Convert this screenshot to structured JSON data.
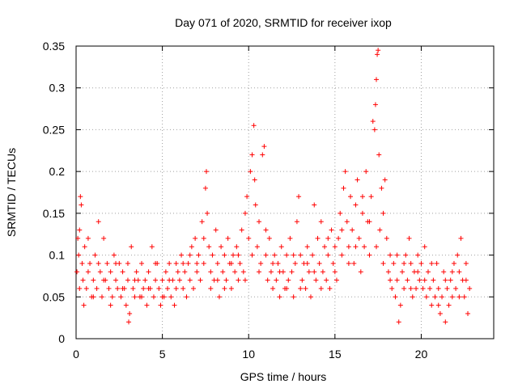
{
  "chart_data": {
    "type": "scatter",
    "title": "Day 071 of 2020, SRMTID for receiver ixop",
    "xlabel": "GPS time / hours",
    "ylabel": "SRMTID / TECUs",
    "xlim": [
      0,
      24.2
    ],
    "ylim": [
      0,
      0.35
    ],
    "xticks": [
      0,
      5,
      10,
      15,
      20
    ],
    "xtick_labels": [
      "0",
      "5",
      "10",
      "15",
      "20"
    ],
    "yticks": [
      0,
      0.05,
      0.1,
      0.15,
      0.2,
      0.25,
      0.3,
      0.35
    ],
    "ytick_labels": [
      "0",
      "0.05",
      "0.1",
      "0.15",
      "0.2",
      "0.25",
      "0.3",
      "0.35"
    ],
    "grid": true,
    "marker": "+",
    "marker_color": "#ff0000",
    "series": [
      {
        "name": "SRMTID",
        "points": [
          [
            0.05,
            0.08
          ],
          [
            0.1,
            0.12
          ],
          [
            0.15,
            0.1
          ],
          [
            0.2,
            0.13
          ],
          [
            0.25,
            0.17
          ],
          [
            0.3,
            0.16
          ],
          [
            0.35,
            0.09
          ],
          [
            0.4,
            0.07
          ],
          [
            0.5,
            0.11
          ],
          [
            0.6,
            0.06
          ],
          [
            0.7,
            0.12
          ],
          [
            0.8,
            0.09
          ],
          [
            0.9,
            0.05
          ],
          [
            1.0,
            0.07
          ],
          [
            1.1,
            0.1
          ],
          [
            1.2,
            0.06
          ],
          [
            1.3,
            0.14
          ],
          [
            1.4,
            0.08
          ],
          [
            1.5,
            0.05
          ],
          [
            1.6,
            0.12
          ],
          [
            1.7,
            0.07
          ],
          [
            1.8,
            0.09
          ],
          [
            1.9,
            0.06
          ],
          [
            2.0,
            0.08
          ],
          [
            2.1,
            0.05
          ],
          [
            2.2,
            0.1
          ],
          [
            2.3,
            0.07
          ],
          [
            2.4,
            0.06
          ],
          [
            2.5,
            0.09
          ],
          [
            2.6,
            0.05
          ],
          [
            2.7,
            0.08
          ],
          [
            2.8,
            0.06
          ],
          [
            2.9,
            0.04
          ],
          [
            3.0,
            0.07
          ],
          [
            3.05,
            0.02
          ],
          [
            3.1,
            0.03
          ],
          [
            3.2,
            0.11
          ],
          [
            3.3,
            0.06
          ],
          [
            3.4,
            0.05
          ],
          [
            3.5,
            0.08
          ],
          [
            3.6,
            0.07
          ],
          [
            3.7,
            0.05
          ],
          [
            3.8,
            0.09
          ],
          [
            3.9,
            0.06
          ],
          [
            4.0,
            0.07
          ],
          [
            4.1,
            0.04
          ],
          [
            4.2,
            0.08
          ],
          [
            4.3,
            0.06
          ],
          [
            4.4,
            0.11
          ],
          [
            4.5,
            0.05
          ],
          [
            4.6,
            0.07
          ],
          [
            4.7,
            0.09
          ],
          [
            4.8,
            0.06
          ],
          [
            4.9,
            0.04
          ],
          [
            5.0,
            0.07
          ],
          [
            5.1,
            0.05
          ],
          [
            5.2,
            0.08
          ],
          [
            5.3,
            0.06
          ],
          [
            5.4,
            0.09
          ],
          [
            5.5,
            0.05
          ],
          [
            5.6,
            0.07
          ],
          [
            5.7,
            0.04
          ],
          [
            5.8,
            0.06
          ],
          [
            5.9,
            0.08
          ],
          [
            6.0,
            0.07
          ],
          [
            6.1,
            0.1
          ],
          [
            6.2,
            0.06
          ],
          [
            6.3,
            0.08
          ],
          [
            6.4,
            0.05
          ],
          [
            6.5,
            0.09
          ],
          [
            6.6,
            0.07
          ],
          [
            6.7,
            0.11
          ],
          [
            6.8,
            0.06
          ],
          [
            6.9,
            0.12
          ],
          [
            7.0,
            0.08
          ],
          [
            7.1,
            0.1
          ],
          [
            7.2,
            0.07
          ],
          [
            7.3,
            0.14
          ],
          [
            7.4,
            0.09
          ],
          [
            7.5,
            0.18
          ],
          [
            7.55,
            0.2
          ],
          [
            7.6,
            0.15
          ],
          [
            7.7,
            0.11
          ],
          [
            7.8,
            0.08
          ],
          [
            7.9,
            0.1
          ],
          [
            8.0,
            0.07
          ],
          [
            8.1,
            0.13
          ],
          [
            8.2,
            0.09
          ],
          [
            8.3,
            0.05
          ],
          [
            8.4,
            0.11
          ],
          [
            8.5,
            0.08
          ],
          [
            8.6,
            0.1
          ],
          [
            8.7,
            0.07
          ],
          [
            8.8,
            0.12
          ],
          [
            8.9,
            0.09
          ],
          [
            9.0,
            0.06
          ],
          [
            9.1,
            0.1
          ],
          [
            9.2,
            0.08
          ],
          [
            9.3,
            0.11
          ],
          [
            9.4,
            0.07
          ],
          [
            9.5,
            0.09
          ],
          [
            9.6,
            0.13
          ],
          [
            9.7,
            0.08
          ],
          [
            9.8,
            0.15
          ],
          [
            9.9,
            0.17
          ],
          [
            10.0,
            0.12
          ],
          [
            10.1,
            0.2
          ],
          [
            10.2,
            0.22
          ],
          [
            10.3,
            0.255
          ],
          [
            10.35,
            0.19
          ],
          [
            10.4,
            0.16
          ],
          [
            10.5,
            0.11
          ],
          [
            10.6,
            0.14
          ],
          [
            10.7,
            0.09
          ],
          [
            10.8,
            0.22
          ],
          [
            10.9,
            0.23
          ],
          [
            11.0,
            0.1
          ],
          [
            11.1,
            0.07
          ],
          [
            11.2,
            0.12
          ],
          [
            11.3,
            0.08
          ],
          [
            11.4,
            0.06
          ],
          [
            11.5,
            0.1
          ],
          [
            11.6,
            0.07
          ],
          [
            11.7,
            0.09
          ],
          [
            11.8,
            0.05
          ],
          [
            11.9,
            0.11
          ],
          [
            12.0,
            0.08
          ],
          [
            12.1,
            0.06
          ],
          [
            12.2,
            0.1
          ],
          [
            12.3,
            0.07
          ],
          [
            12.4,
            0.12
          ],
          [
            12.5,
            0.08
          ],
          [
            12.6,
            0.05
          ],
          [
            12.7,
            0.09
          ],
          [
            12.8,
            0.14
          ],
          [
            12.9,
            0.17
          ],
          [
            13.0,
            0.1
          ],
          [
            13.1,
            0.07
          ],
          [
            13.2,
            0.09
          ],
          [
            13.3,
            0.06
          ],
          [
            13.4,
            0.11
          ],
          [
            13.5,
            0.08
          ],
          [
            13.6,
            0.05
          ],
          [
            13.7,
            0.1
          ],
          [
            13.8,
            0.16
          ],
          [
            13.9,
            0.07
          ],
          [
            14.0,
            0.12
          ],
          [
            14.1,
            0.09
          ],
          [
            14.2,
            0.14
          ],
          [
            14.3,
            0.08
          ],
          [
            14.4,
            0.11
          ],
          [
            14.5,
            0.07
          ],
          [
            14.6,
            0.1
          ],
          [
            14.7,
            0.06
          ],
          [
            14.8,
            0.13
          ],
          [
            14.9,
            0.09
          ],
          [
            15.0,
            0.11
          ],
          [
            15.1,
            0.07
          ],
          [
            15.2,
            0.12
          ],
          [
            15.3,
            0.15
          ],
          [
            15.4,
            0.1
          ],
          [
            15.5,
            0.18
          ],
          [
            15.6,
            0.2
          ],
          [
            15.7,
            0.14
          ],
          [
            15.8,
            0.11
          ],
          [
            15.9,
            0.17
          ],
          [
            16.0,
            0.13
          ],
          [
            16.1,
            0.09
          ],
          [
            16.2,
            0.16
          ],
          [
            16.3,
            0.19
          ],
          [
            16.4,
            0.12
          ],
          [
            16.5,
            0.08
          ],
          [
            16.6,
            0.15
          ],
          [
            16.7,
            0.11
          ],
          [
            16.8,
            0.2
          ],
          [
            16.9,
            0.14
          ],
          [
            17.0,
            0.1
          ],
          [
            17.1,
            0.17
          ],
          [
            17.2,
            0.26
          ],
          [
            17.3,
            0.25
          ],
          [
            17.35,
            0.28
          ],
          [
            17.4,
            0.31
          ],
          [
            17.45,
            0.34
          ],
          [
            17.5,
            0.345
          ],
          [
            17.55,
            0.22
          ],
          [
            17.6,
            0.13
          ],
          [
            17.7,
            0.18
          ],
          [
            17.8,
            0.15
          ],
          [
            17.9,
            0.19
          ],
          [
            18.0,
            0.12
          ],
          [
            18.1,
            0.08
          ],
          [
            18.2,
            0.1
          ],
          [
            18.3,
            0.06
          ],
          [
            18.4,
            0.09
          ],
          [
            18.5,
            0.05
          ],
          [
            18.6,
            0.07
          ],
          [
            18.7,
            0.02
          ],
          [
            18.8,
            0.04
          ],
          [
            18.9,
            0.08
          ],
          [
            19.0,
            0.06
          ],
          [
            19.1,
            0.1
          ],
          [
            19.2,
            0.07
          ],
          [
            19.3,
            0.12
          ],
          [
            19.4,
            0.09
          ],
          [
            19.5,
            0.05
          ],
          [
            19.6,
            0.08
          ],
          [
            19.7,
            0.06
          ],
          [
            19.8,
            0.1
          ],
          [
            19.9,
            0.07
          ],
          [
            20.0,
            0.09
          ],
          [
            20.1,
            0.06
          ],
          [
            20.2,
            0.11
          ],
          [
            20.3,
            0.05
          ],
          [
            20.4,
            0.08
          ],
          [
            20.5,
            0.06
          ],
          [
            20.6,
            0.04
          ],
          [
            20.7,
            0.07
          ],
          [
            20.8,
            0.05
          ],
          [
            20.9,
            0.09
          ],
          [
            21.0,
            0.06
          ],
          [
            21.1,
            0.03
          ],
          [
            21.2,
            0.05
          ],
          [
            21.3,
            0.08
          ],
          [
            21.4,
            0.02
          ],
          [
            21.5,
            0.06
          ],
          [
            21.6,
            0.04
          ],
          [
            21.7,
            0.07
          ],
          [
            21.8,
            0.05
          ],
          [
            21.9,
            0.09
          ],
          [
            22.0,
            0.06
          ],
          [
            22.1,
            0.1
          ],
          [
            22.2,
            0.08
          ],
          [
            22.3,
            0.12
          ],
          [
            22.4,
            0.07
          ],
          [
            22.5,
            0.05
          ],
          [
            22.6,
            0.09
          ],
          [
            22.7,
            0.03
          ],
          [
            22.8,
            0.06
          ],
          [
            0.2,
            0.06
          ],
          [
            0.45,
            0.04
          ],
          [
            0.7,
            0.08
          ],
          [
            1.0,
            0.05
          ],
          [
            1.3,
            0.09
          ],
          [
            1.6,
            0.07
          ],
          [
            2.0,
            0.04
          ],
          [
            2.3,
            0.09
          ],
          [
            2.7,
            0.06
          ],
          [
            3.0,
            0.09
          ],
          [
            3.4,
            0.07
          ],
          [
            3.8,
            0.05
          ],
          [
            4.2,
            0.06
          ],
          [
            4.6,
            0.09
          ],
          [
            5.0,
            0.05
          ],
          [
            5.4,
            0.07
          ],
          [
            5.8,
            0.09
          ],
          [
            6.2,
            0.09
          ],
          [
            6.6,
            0.1
          ],
          [
            7.0,
            0.09
          ],
          [
            7.4,
            0.12
          ],
          [
            7.8,
            0.06
          ],
          [
            8.2,
            0.07
          ],
          [
            8.6,
            0.06
          ],
          [
            9.0,
            0.09
          ],
          [
            9.4,
            0.1
          ],
          [
            9.8,
            0.07
          ],
          [
            10.2,
            0.1
          ],
          [
            10.6,
            0.08
          ],
          [
            11.0,
            0.13
          ],
          [
            11.4,
            0.09
          ],
          [
            11.8,
            0.08
          ],
          [
            12.2,
            0.06
          ],
          [
            12.6,
            0.1
          ],
          [
            13.0,
            0.06
          ],
          [
            13.4,
            0.09
          ],
          [
            13.8,
            0.08
          ],
          [
            14.2,
            0.06
          ],
          [
            14.6,
            0.12
          ],
          [
            15.0,
            0.08
          ],
          [
            15.4,
            0.13
          ],
          [
            15.8,
            0.09
          ],
          [
            16.2,
            0.11
          ],
          [
            16.6,
            0.17
          ],
          [
            17.0,
            0.14
          ],
          [
            17.4,
            0.11
          ],
          [
            17.8,
            0.09
          ],
          [
            18.2,
            0.07
          ],
          [
            18.6,
            0.1
          ],
          [
            19.0,
            0.09
          ],
          [
            19.4,
            0.06
          ],
          [
            19.8,
            0.08
          ],
          [
            20.2,
            0.07
          ],
          [
            20.6,
            0.09
          ],
          [
            21.0,
            0.04
          ],
          [
            21.4,
            0.07
          ],
          [
            21.8,
            0.08
          ],
          [
            22.2,
            0.05
          ],
          [
            22.6,
            0.07
          ]
        ]
      }
    ]
  }
}
